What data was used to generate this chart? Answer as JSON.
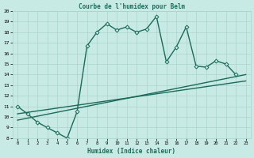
{
  "title": "Courbe de l'humidex pour Belm",
  "xlabel": "Humidex (Indice chaleur)",
  "xlim": [
    -0.5,
    23.5
  ],
  "ylim": [
    8,
    20
  ],
  "xticks": [
    0,
    1,
    2,
    3,
    4,
    5,
    6,
    7,
    8,
    9,
    10,
    11,
    12,
    13,
    14,
    15,
    16,
    17,
    18,
    19,
    20,
    21,
    22,
    23
  ],
  "yticks": [
    8,
    9,
    10,
    11,
    12,
    13,
    14,
    15,
    16,
    17,
    18,
    19,
    20
  ],
  "bg_color": "#c8eae4",
  "line_color": "#1a6b5a",
  "grid_color": "#aad4cc",
  "series1_x": [
    0,
    1,
    2,
    3,
    4,
    5,
    6,
    7,
    8,
    9,
    10,
    11,
    12,
    13,
    14,
    15,
    16,
    17,
    18,
    19,
    20,
    21,
    22
  ],
  "series1_y": [
    11.0,
    10.3,
    9.5,
    9.0,
    8.5,
    8.0,
    10.5,
    16.7,
    18.0,
    18.8,
    18.2,
    18.5,
    18.0,
    18.3,
    19.5,
    15.2,
    16.6,
    18.5,
    14.8,
    14.7,
    15.3,
    15.0,
    14.0
  ],
  "series2_x": [
    0,
    23
  ],
  "series2_y": [
    9.7,
    14.0
  ],
  "series3_x": [
    0,
    23
  ],
  "series3_y": [
    10.3,
    13.4
  ],
  "marker": "D",
  "markersize": 2.5,
  "linewidth": 1.0
}
